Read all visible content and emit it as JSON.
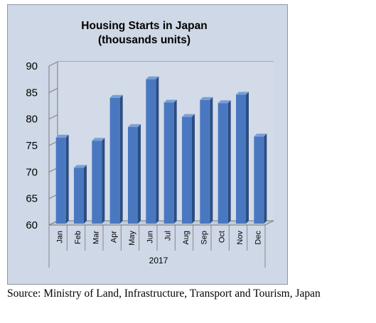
{
  "chart_data": {
    "type": "bar",
    "title": "Housing Starts in Japan",
    "subtitle": "(thousands units)",
    "categories": [
      "Jan",
      "Feb",
      "Mar",
      "Apr",
      "May",
      "Jun",
      "Jul",
      "Aug",
      "Sep",
      "Oct",
      "Nov",
      "Dec"
    ],
    "group_label": "2017",
    "values": [
      76.5,
      70.8,
      75.9,
      84.0,
      78.5,
      87.5,
      83.1,
      80.4,
      83.6,
      83.0,
      84.6,
      76.7
    ],
    "xlabel": "",
    "ylabel": "",
    "ylim": [
      60,
      90
    ],
    "yticks": [
      60,
      65,
      70,
      75,
      80,
      85,
      90
    ],
    "grid": true,
    "bar_color": "#4a78c0",
    "bar_side_color": "#2b4d82",
    "bar_top_color": "#7a9fd8",
    "legend": "none"
  },
  "source_note": "Source: Ministry of Land, Infrastructure, Transport and Tourism, Japan"
}
